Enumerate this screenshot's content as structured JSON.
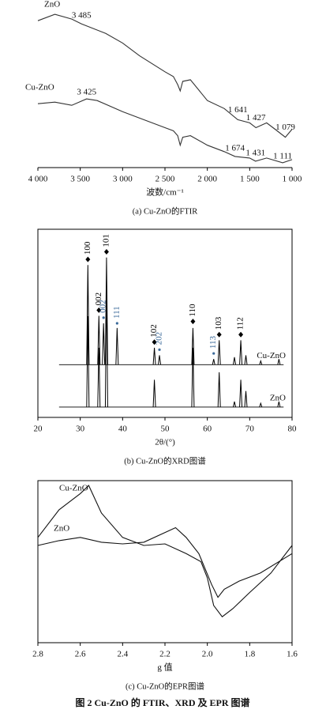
{
  "figure": {
    "title": "图 2   Cu-ZnO 的 FTIR、XRD 及 EPR 图谱"
  },
  "chart_data": [
    {
      "type": "line",
      "caption": "(a) Cu-ZnO的FTIR",
      "x_label": "波数/cm⁻¹",
      "frame": false,
      "xlim": [
        4000,
        1000
      ],
      "ylim": [
        0,
        100
      ],
      "xticks": [
        {
          "value": 4000,
          "label": "4 000"
        },
        {
          "value": 3500,
          "label": "3 500"
        },
        {
          "value": 3000,
          "label": "3 000"
        },
        {
          "value": 2500,
          "label": "2 500"
        },
        {
          "value": 2000,
          "label": "2 000"
        },
        {
          "value": 1500,
          "label": "1 500"
        },
        {
          "value": 1000,
          "label": "1 000"
        }
      ],
      "series": [
        {
          "name": "ZnO",
          "color": "#333333",
          "x": [
            4000,
            3800,
            3600,
            3485,
            3200,
            3000,
            2800,
            2500,
            2400,
            2350,
            2320,
            2290,
            2200,
            2000,
            1800,
            1641,
            1500,
            1427,
            1300,
            1200,
            1079,
            1000
          ],
          "values": [
            92,
            96,
            93,
            90,
            84,
            78,
            70,
            60,
            57,
            52,
            48,
            54,
            55,
            42,
            37,
            30,
            28,
            25,
            28,
            24,
            19,
            24
          ]
        },
        {
          "name": "Cu-ZnO",
          "color": "#333333",
          "x": [
            4000,
            3800,
            3600,
            3425,
            3300,
            3000,
            2800,
            2500,
            2400,
            2350,
            2320,
            2290,
            2200,
            2000,
            1800,
            1674,
            1500,
            1431,
            1300,
            1111,
            1000
          ],
          "values": [
            40,
            41,
            39,
            43,
            42,
            35,
            31,
            25,
            23,
            20,
            14,
            19,
            20,
            14,
            10,
            7,
            6,
            4,
            6,
            3,
            5
          ]
        }
      ],
      "annotations": [
        {
          "text": "3 485",
          "x": 3485,
          "y": 95
        },
        {
          "text": "1 641",
          "x": 1641,
          "y": 36
        },
        {
          "text": "1 427",
          "x": 1427,
          "y": 31
        },
        {
          "text": "1 079",
          "x": 1079,
          "y": 25
        },
        {
          "text": "3 425",
          "x": 3425,
          "y": 47
        },
        {
          "text": "1 674",
          "x": 1674,
          "y": 12
        },
        {
          "text": "1 431",
          "x": 1431,
          "y": 9
        },
        {
          "text": "1 111",
          "x": 1111,
          "y": 7
        }
      ]
    },
    {
      "type": "stick",
      "caption": "(b) Cu-ZnO的XRD图谱",
      "x_label": "2θ/(°)",
      "frame": true,
      "xlim": [
        20,
        80
      ],
      "ylim": [
        0,
        100
      ],
      "xticks": [
        20,
        30,
        40,
        50,
        60,
        70,
        80
      ],
      "series": [
        {
          "name": "Cu-ZnO",
          "color": "#000000",
          "baseline": 28,
          "x": [
            31.8,
            34.4,
            35.5,
            36.2,
            38.7,
            47.5,
            48.7,
            56.6,
            61.5,
            62.8,
            66.4,
            67.9,
            69.1,
            72.6,
            76.9
          ],
          "values": [
            81,
            54,
            50,
            85,
            47.5,
            37,
            33,
            47.5,
            31,
            41,
            32,
            41,
            33,
            30,
            31
          ]
        },
        {
          "name": "ZnO",
          "color": "#000000",
          "baseline": 5.5,
          "x": [
            31.8,
            34.4,
            36.2,
            47.5,
            56.6,
            62.8,
            66.4,
            67.9,
            69.1,
            72.6,
            76.9
          ],
          "values": [
            53.8,
            37,
            72.7,
            20,
            37,
            24,
            8.4,
            20,
            14,
            7.5,
            8.4
          ]
        }
      ],
      "annotations": [
        {
          "text": "100",
          "x": 31.8,
          "y": 84,
          "color": "#000000",
          "marker": "diamond"
        },
        {
          "text": "002",
          "x": 34.4,
          "y": 57,
          "color": "#000000",
          "marker": "diamond"
        },
        {
          "text": "002",
          "x": 35.5,
          "y": 53,
          "color": "#3b6a9a",
          "marker": "dot"
        },
        {
          "text": "101",
          "x": 36.2,
          "y": 88,
          "color": "#000000",
          "marker": "diamond"
        },
        {
          "text": "111",
          "x": 38.7,
          "y": 50,
          "color": "#3b6a9a",
          "marker": "dot"
        },
        {
          "text": "102",
          "x": 47.5,
          "y": 40,
          "color": "#000000",
          "marker": "diamond"
        },
        {
          "text": "202",
          "x": 48.7,
          "y": 36,
          "color": "#3b6a9a",
          "marker": "dot"
        },
        {
          "text": "110",
          "x": 56.6,
          "y": 51,
          "color": "#000000",
          "marker": "diamond"
        },
        {
          "text": "113",
          "x": 61.5,
          "y": 34,
          "color": "#3b6a9a",
          "marker": "dot"
        },
        {
          "text": "103",
          "x": 62.8,
          "y": 44,
          "color": "#000000",
          "marker": "diamond"
        },
        {
          "text": "112",
          "x": 67.9,
          "y": 44,
          "color": "#000000",
          "marker": "diamond"
        }
      ]
    },
    {
      "type": "line",
      "caption": "(c) Cu-ZnO的EPR图谱",
      "x_label": "g 值",
      "frame": true,
      "xlim": [
        2.8,
        1.6
      ],
      "ylim": [
        0,
        100
      ],
      "xticks": [
        2.8,
        2.6,
        2.4,
        2.2,
        {
          "value": 2,
          "label": "2.0"
        },
        1.8,
        1.6
      ],
      "series": [
        {
          "name": "Cu-ZnO",
          "color": "#111111",
          "x": [
            2.8,
            2.7,
            2.6,
            2.56,
            2.5,
            2.4,
            2.3,
            2.2,
            2.1,
            2.03,
            2.0,
            1.97,
            1.93,
            1.88,
            1.8,
            1.7,
            1.6
          ],
          "values": [
            65,
            82,
            92,
            97,
            80,
            65,
            60,
            61,
            55,
            50,
            40,
            23,
            16,
            21,
            31,
            43,
            60
          ]
        },
        {
          "name": "ZnO",
          "color": "#111111",
          "x": [
            2.8,
            2.7,
            2.6,
            2.5,
            2.4,
            2.3,
            2.15,
            2.1,
            2.04,
            1.98,
            1.95,
            1.92,
            1.85,
            1.75,
            1.6
          ],
          "values": [
            60,
            63,
            65,
            62,
            61,
            62,
            71,
            65,
            55,
            36,
            28,
            33,
            38,
            43,
            55
          ]
        }
      ]
    }
  ]
}
